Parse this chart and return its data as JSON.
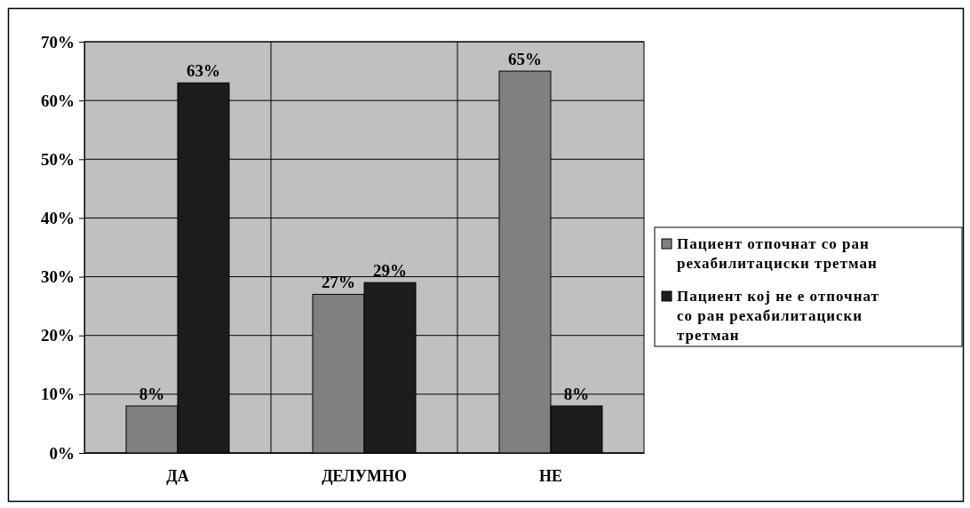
{
  "chart_data": {
    "type": "bar",
    "categories": [
      "ДА",
      "ДЕЛУМНО",
      "НЕ"
    ],
    "series": [
      {
        "name": "Пациент отпочнат со ран рехабилитациски третман",
        "color": "#808080",
        "values": [
          8,
          27,
          65
        ]
      },
      {
        "name": "Пациент кој не е отпочнат со ран рехабилитациски третман",
        "color": "#1c1c1c",
        "values": [
          63,
          29,
          8
        ]
      }
    ],
    "ylim": [
      0,
      70
    ],
    "yticks": [
      {
        "value": 0,
        "label": "0%"
      },
      {
        "value": 10,
        "label": "10%"
      },
      {
        "value": 20,
        "label": "20%"
      },
      {
        "value": 30,
        "label": "30%"
      },
      {
        "value": 40,
        "label": "40%"
      },
      {
        "value": 50,
        "label": "50%"
      },
      {
        "value": 60,
        "label": "60%"
      },
      {
        "value": 70,
        "label": "70%"
      }
    ],
    "value_labels": [
      [
        "8%",
        "27%",
        "65%"
      ],
      [
        "63%",
        "29%",
        "8%"
      ]
    ],
    "grid": "y",
    "legend": "right"
  }
}
